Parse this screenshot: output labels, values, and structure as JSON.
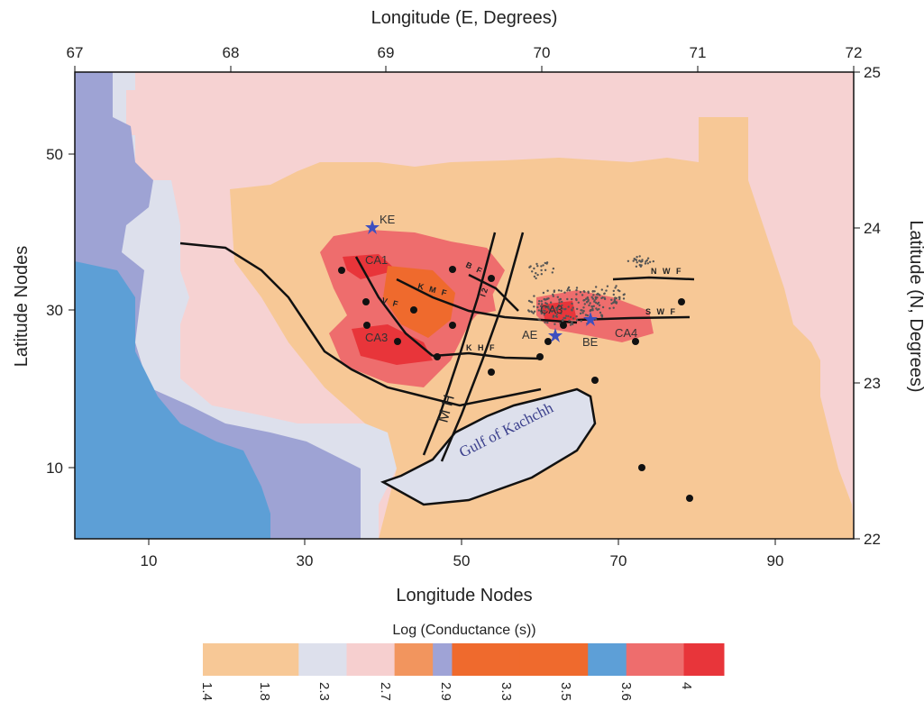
{
  "axes": {
    "top_title": "Longitude (E, Degrees)",
    "bottom_title": "Longitude Nodes",
    "left_title": "Latitude Nodes",
    "right_title": "Latitude (N, Degrees)",
    "top_ticks": [
      "67",
      "68",
      "69",
      "70",
      "71",
      "72"
    ],
    "bottom_ticks": [
      "10",
      "30",
      "50",
      "70",
      "90"
    ],
    "left_ticks": [
      "50",
      "30",
      "10"
    ],
    "right_ticks": [
      "25",
      "24",
      "23",
      "22"
    ]
  },
  "labels": {
    "ke": "KE",
    "ca1": "CA1",
    "ca2": "CA2",
    "ca3": "CA3",
    "ca4": "CA4",
    "ae": "AE",
    "be": "BE",
    "gulf": "Gulf of Kachchh",
    "mh": "M H",
    "bf": "B F",
    "kmf": "K M F",
    "vf": "V F",
    "khf": "K H F",
    "nwf": "N W F",
    "swf": "S W F",
    "i2": "I2"
  },
  "colorbar": {
    "title": "Log (Conductance (s))",
    "ticks": [
      "1.4",
      "1.8",
      "2.3",
      "2.7",
      "2.9",
      "3.3",
      "3.5",
      "3.6",
      "4"
    ],
    "colors": [
      "#f7c896",
      "#f7c896",
      "#dde0ec",
      "#f6cfcf",
      "#f2955e",
      "#9fa3d6",
      "#ef6a2d",
      "#ef6a2d",
      "#5d9fd7",
      "#ee6d6d",
      "#e8353a"
    ]
  },
  "colors": {
    "map_pink": "#f6d2d2",
    "map_light_blue": "#dde0ec",
    "map_lavender": "#9ea3d4",
    "map_blue": "#5d9fd6",
    "map_peach": "#f7c896",
    "zone_red": "#e94a48",
    "zone_orange": "#ef6a2d",
    "zone_light_red": "#ee6d6d",
    "gulf_fill": "#dde0ec",
    "epicenter_star": "#3d4fbf"
  }
}
